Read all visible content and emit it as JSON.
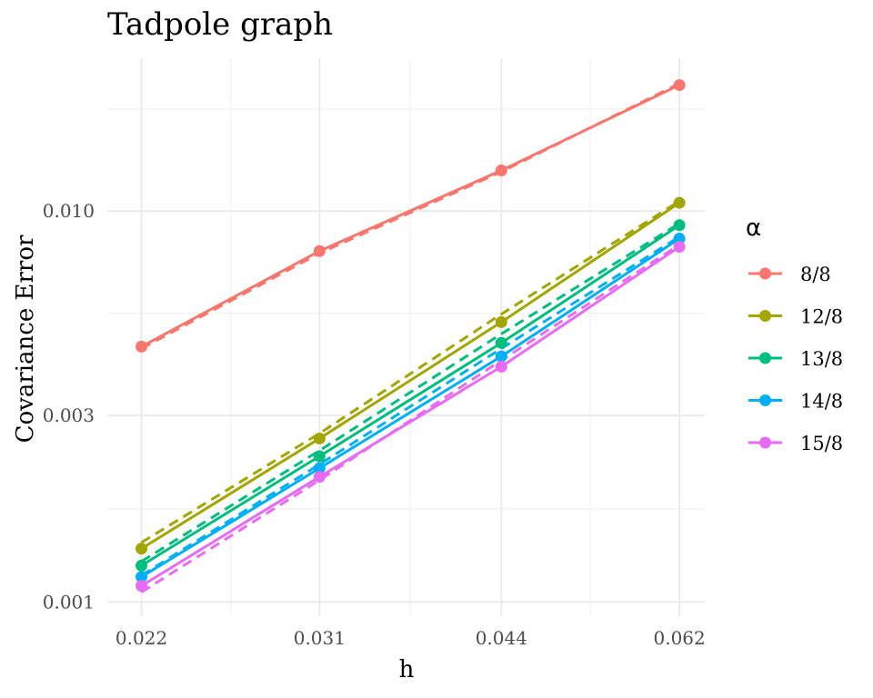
{
  "chart_data": {
    "type": "line",
    "title": "Tadpole graph",
    "xlabel": "h",
    "ylabel": "Covariance Error",
    "x_scale": "log",
    "y_scale": "log",
    "x": [
      0.022,
      0.031,
      0.044,
      0.062
    ],
    "x_tick_labels": [
      "0.022",
      "0.031",
      "0.044",
      "0.062"
    ],
    "y_ticks": [
      0.001,
      0.003,
      0.01
    ],
    "y_tick_labels": [
      "0.001",
      "0.003",
      "0.010"
    ],
    "xlim": [
      0.0206,
      0.0651
    ],
    "ylim": [
      0.00092,
      0.0246
    ],
    "grid": true,
    "legend_title": "α",
    "legend_position": "right",
    "series": [
      {
        "name": "8/8",
        "color": "#F8766D",
        "values": [
          0.0045,
          0.0079,
          0.0127,
          0.021
        ],
        "fitted": [
          0.00445,
          0.0078,
          0.0126,
          0.0212
        ]
      },
      {
        "name": "12/8",
        "color": "#A3A500",
        "values": [
          0.00137,
          0.00262,
          0.0052,
          0.0105
        ],
        "fitted": [
          0.00142,
          0.0027,
          0.00545,
          0.0106
        ]
      },
      {
        "name": "13/8",
        "color": "#00BF7D",
        "values": [
          0.00124,
          0.00236,
          0.0046,
          0.0092
        ],
        "fitted": [
          0.00127,
          0.00244,
          0.00485,
          0.0093
        ]
      },
      {
        "name": "14/8",
        "color": "#00B0F6",
        "values": [
          0.00116,
          0.0022,
          0.00425,
          0.0085
        ],
        "fitted": [
          0.00117,
          0.00225,
          0.00445,
          0.0086
        ]
      },
      {
        "name": "15/8",
        "color": "#E76BF3",
        "values": [
          0.0011,
          0.00209,
          0.004,
          0.0081
        ],
        "fitted": [
          0.00106,
          0.00205,
          0.00415,
          0.0082
        ]
      }
    ]
  }
}
